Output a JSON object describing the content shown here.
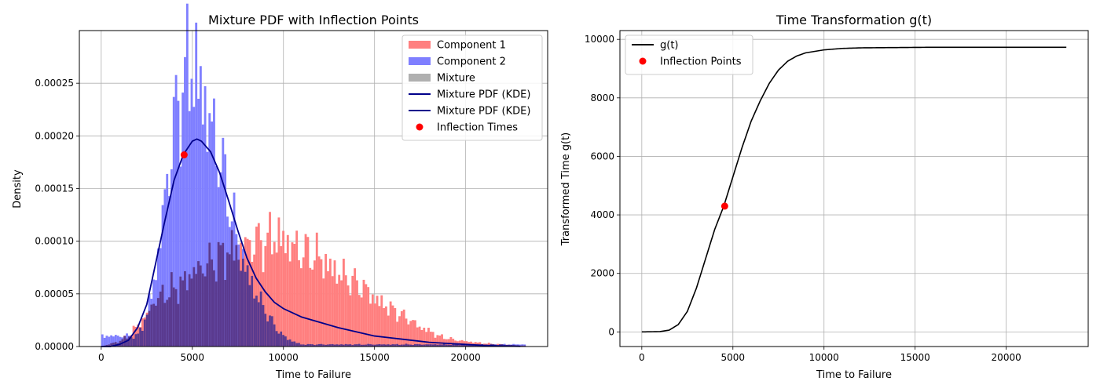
{
  "chart_data": [
    {
      "type": "histogram",
      "title": "Mixture PDF with Inflection Points",
      "xlabel": "Time to Failure",
      "ylabel": "Density",
      "xlim": [
        -1200,
        24500
      ],
      "ylim": [
        0,
        0.0003
      ],
      "xticks": [
        "0",
        "5000",
        "10000",
        "15000",
        "20000"
      ],
      "xtick_values": [
        0,
        5000,
        10000,
        15000,
        20000
      ],
      "yticks": [
        "0.00000",
        "0.00005",
        "0.00010",
        "0.00015",
        "0.00020",
        "0.00025"
      ],
      "ytick_values": [
        0,
        5e-05,
        0.0001,
        0.00015,
        0.0002,
        0.00025
      ],
      "grid": true,
      "legend_position": "top-right",
      "legend": [
        {
          "label": "Component 1",
          "kind": "patch",
          "color": "#ff7f7f"
        },
        {
          "label": "Component 2",
          "kind": "patch",
          "color": "#7f7fff"
        },
        {
          "label": "Mixture",
          "kind": "patch",
          "color": "#b0b0b0"
        },
        {
          "label": "Mixture PDF (KDE)",
          "kind": "line",
          "color": "#00008b"
        },
        {
          "label": "Mixture PDF (KDE)",
          "kind": "line",
          "color": "#00008b"
        },
        {
          "label": "Inflection Times",
          "kind": "dot",
          "color": "#ff0000"
        }
      ],
      "series": [
        {
          "name": "Component 1",
          "color": "#ff7f7f",
          "x": [
            0,
            1000,
            1500,
            2000,
            2500,
            3000,
            3500,
            4000,
            4500,
            5000,
            5500,
            6000,
            6500,
            7000,
            7500,
            8000,
            8500,
            9000,
            9500,
            10000,
            10500,
            11000,
            11500,
            12000,
            12500,
            13000,
            13500,
            14000,
            14500,
            15000,
            15500,
            16000,
            16500,
            17000,
            17500,
            18000,
            18500,
            19000,
            19500,
            20000,
            20500,
            21000,
            22000,
            23000
          ],
          "values": [
            0,
            5e-06,
            1e-05,
            2e-05,
            3e-05,
            4.5e-05,
            5e-05,
            5.5e-05,
            6e-05,
            7e-05,
            7.5e-05,
            8e-05,
            8.5e-05,
            9e-05,
            9.2e-05,
            9.5e-05,
            0.0001,
            9.8e-05,
            0.000105,
            0.0001,
            9.5e-05,
            9e-05,
            8.8e-05,
            8.5e-05,
            7.5e-05,
            7e-05,
            6.5e-05,
            6e-05,
            5.5e-05,
            4.5e-05,
            4e-05,
            3.5e-05,
            3e-05,
            2.5e-05,
            1.8e-05,
            1.5e-05,
            1e-05,
            8e-06,
            6e-06,
            5e-06,
            4e-06,
            3e-06,
            2e-06,
            1e-06
          ]
        },
        {
          "name": "Component 2",
          "color": "#7f7fff",
          "x": [
            2000,
            2500,
            3000,
            3500,
            4000,
            4500,
            5000,
            5500,
            6000,
            6500,
            7000,
            7500,
            8000,
            8500,
            9000,
            9500,
            10000,
            10500,
            11000
          ],
          "values": [
            1e-05,
            3e-05,
            7e-05,
            0.00014,
            0.00021,
            0.00025,
            0.00027,
            0.00024,
            0.00021,
            0.00018,
            0.00014,
            0.0001,
            7e-05,
            5e-05,
            3.5e-05,
            2e-05,
            1e-05,
            5e-06,
            2e-06
          ]
        },
        {
          "name": "Mixture PDF (KDE)",
          "color": "#00008b",
          "x": [
            0,
            500,
            1000,
            1500,
            2000,
            2500,
            3000,
            3500,
            4000,
            4500,
            5000,
            5250,
            5500,
            6000,
            6500,
            7000,
            7500,
            8000,
            8500,
            9000,
            9500,
            10000,
            11000,
            12000,
            13000,
            14000,
            15000,
            16000,
            17000,
            18000,
            19000,
            20000,
            21000,
            22000,
            23000
          ],
          "values": [
            0,
            0,
            2e-06,
            6e-06,
            1.8e-05,
            4e-05,
            8e-05,
            0.00012,
            0.000158,
            0.000182,
            0.000195,
            0.000197,
            0.000195,
            0.000185,
            0.000165,
            0.000138,
            0.00011,
            8.4e-05,
            6.5e-05,
            5.2e-05,
            4.2e-05,
            3.6e-05,
            2.8e-05,
            2.3e-05,
            1.8e-05,
            1.4e-05,
            1e-05,
            8e-06,
            6e-06,
            4e-06,
            3e-06,
            2e-06,
            1e-06,
            5e-07,
            2e-07
          ]
        }
      ],
      "inflection_points": [
        {
          "x": 4550,
          "y": 0.000182
        }
      ]
    },
    {
      "type": "line",
      "title": "Time Transformation g(t)",
      "xlabel": "Time to Failure",
      "ylabel": "Transformed Time g(t)",
      "xlim": [
        -1200,
        24500
      ],
      "ylim": [
        -500,
        10300
      ],
      "xticks": [
        "0",
        "5000",
        "10000",
        "15000",
        "20000"
      ],
      "xtick_values": [
        0,
        5000,
        10000,
        15000,
        20000
      ],
      "yticks": [
        "0",
        "2000",
        "4000",
        "6000",
        "8000",
        "10000"
      ],
      "ytick_values": [
        0,
        2000,
        4000,
        6000,
        8000,
        10000
      ],
      "grid": true,
      "legend_position": "top-left",
      "legend": [
        {
          "label": "g(t)",
          "kind": "line",
          "color": "#000000"
        },
        {
          "label": "Inflection Points",
          "kind": "dot",
          "color": "#ff0000"
        }
      ],
      "series": [
        {
          "name": "g(t)",
          "color": "#000000",
          "x": [
            0,
            1000,
            1500,
            2000,
            2500,
            3000,
            3500,
            4000,
            4500,
            5000,
            5500,
            6000,
            6500,
            7000,
            7500,
            8000,
            8500,
            9000,
            10000,
            11000,
            12000,
            14000,
            16000,
            20000,
            23300
          ],
          "values": [
            0,
            10,
            60,
            250,
            700,
            1500,
            2500,
            3500,
            4300,
            5300,
            6300,
            7200,
            7900,
            8500,
            8950,
            9250,
            9430,
            9540,
            9640,
            9690,
            9710,
            9720,
            9730,
            9730,
            9730
          ]
        }
      ],
      "inflection_points": [
        {
          "x": 4550,
          "y": 4300
        }
      ]
    }
  ]
}
